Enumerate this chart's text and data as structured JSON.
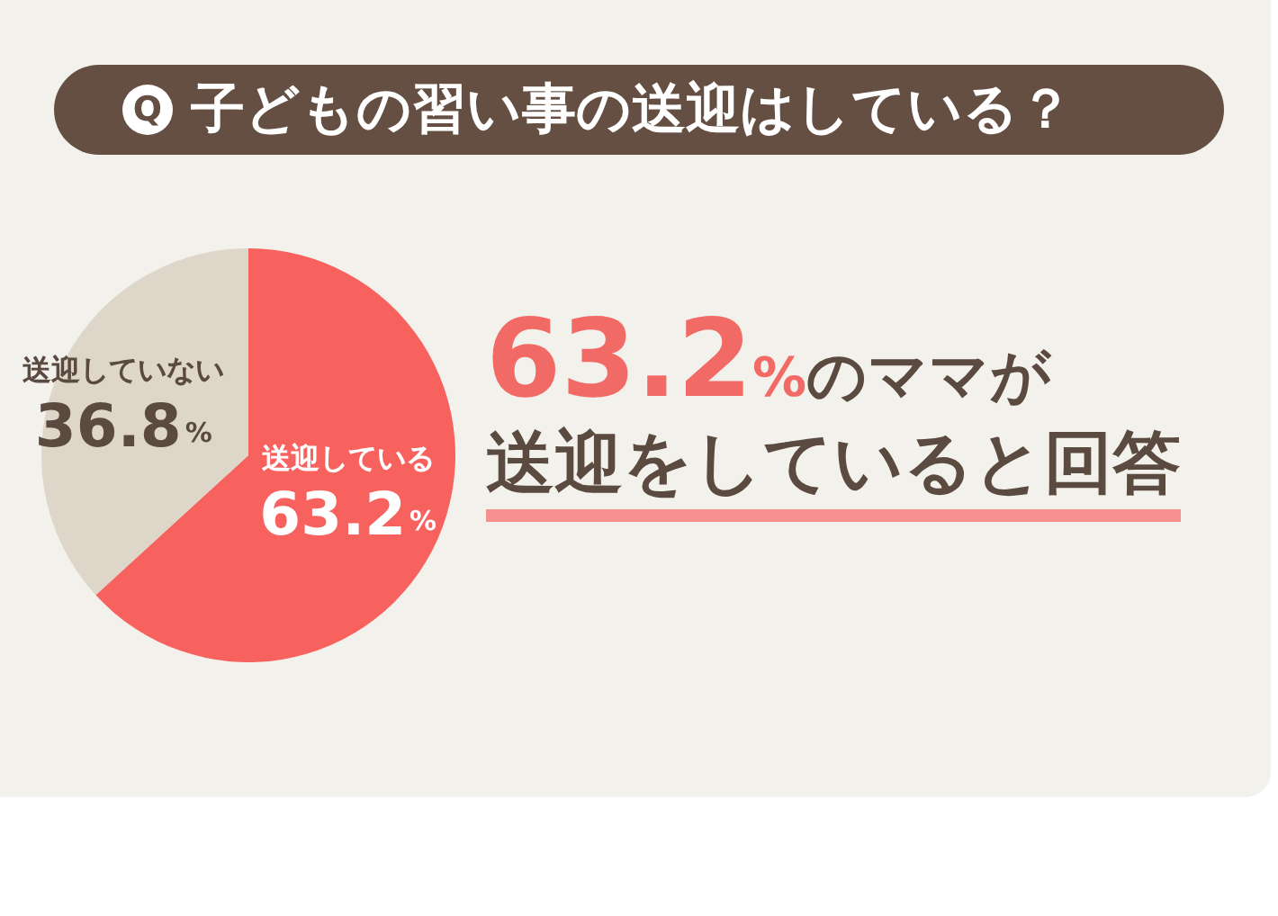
{
  "chart_data": {
    "type": "pie",
    "title": "Q 子どもの習い事の送迎はしている？",
    "categories": [
      "送迎している",
      "送迎していない"
    ],
    "values": [
      63.2,
      36.8
    ],
    "colors": [
      "#f7625f",
      "#ddd6c9"
    ],
    "value_labels": [
      "63.2%",
      "36.8%"
    ],
    "annotations": [
      "63.2%のママが",
      "送迎をしていると回答"
    ]
  }
}
